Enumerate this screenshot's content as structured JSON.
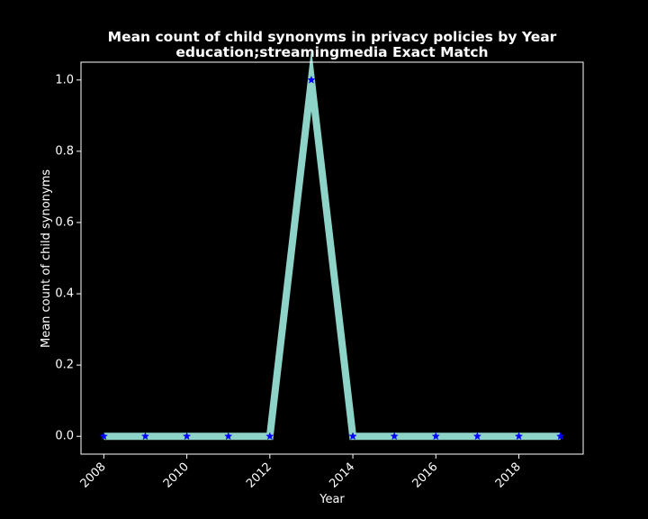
{
  "chart_data": {
    "type": "line",
    "title": "Mean count of child synonyms in privacy policies by Year",
    "subtitle": "education;streamingmedia Exact Match",
    "xlabel": "Year",
    "ylabel": "Mean count of child synonyms",
    "x": [
      2008,
      2009,
      2010,
      2011,
      2012,
      2013,
      2014,
      2015,
      2016,
      2017,
      2018,
      2019
    ],
    "y": [
      0,
      0,
      0,
      0,
      0,
      1,
      0,
      0,
      0,
      0,
      0,
      0
    ],
    "xlim": [
      2007.45,
      2019.55
    ],
    "ylim": [
      -0.05,
      1.05
    ],
    "xticks": [
      2008,
      2010,
      2012,
      2014,
      2016,
      2018
    ],
    "yticks": [
      0.0,
      0.2,
      0.4,
      0.6,
      0.8,
      1.0
    ],
    "ytick_labels": [
      "0.0",
      "0.2",
      "0.4",
      "0.6",
      "0.8",
      "1.0"
    ],
    "grid": false,
    "background": "#000000",
    "line_color": "#8dd3c7",
    "marker_color": "#0000ff",
    "marker": "star",
    "axes_color": "#ffffff",
    "text_color": "#ffffff"
  }
}
